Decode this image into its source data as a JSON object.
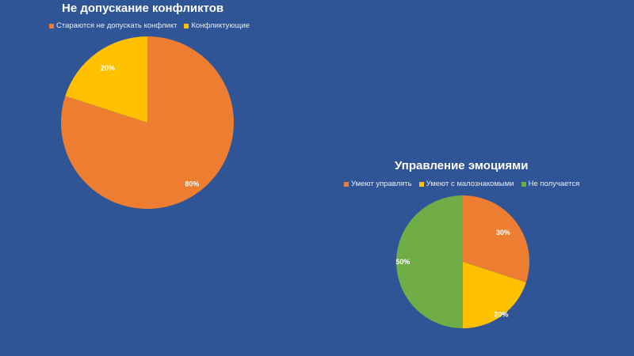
{
  "chart_data": [
    {
      "type": "pie",
      "title": "Не допускание конфликтов",
      "legend_position": "top",
      "slices": [
        {
          "label": "Стараются не допускать конфликт",
          "value": 80,
          "display": "80%",
          "color": "#ed7d31"
        },
        {
          "label": "Конфликтующие",
          "value": 20,
          "display": "20%",
          "color": "#ffc000"
        }
      ]
    },
    {
      "type": "pie",
      "title": "Управление эмоциями",
      "legend_position": "top",
      "slices": [
        {
          "label": "Умеют управлять",
          "value": 30,
          "display": "30%",
          "color": "#ed7d31"
        },
        {
          "label": "Умеют с малознакомыми",
          "value": 20,
          "display": "20%",
          "color": "#ffc000"
        },
        {
          "label": "Не получается",
          "value": 50,
          "display": "50%",
          "color": "#70ad47"
        }
      ]
    }
  ]
}
